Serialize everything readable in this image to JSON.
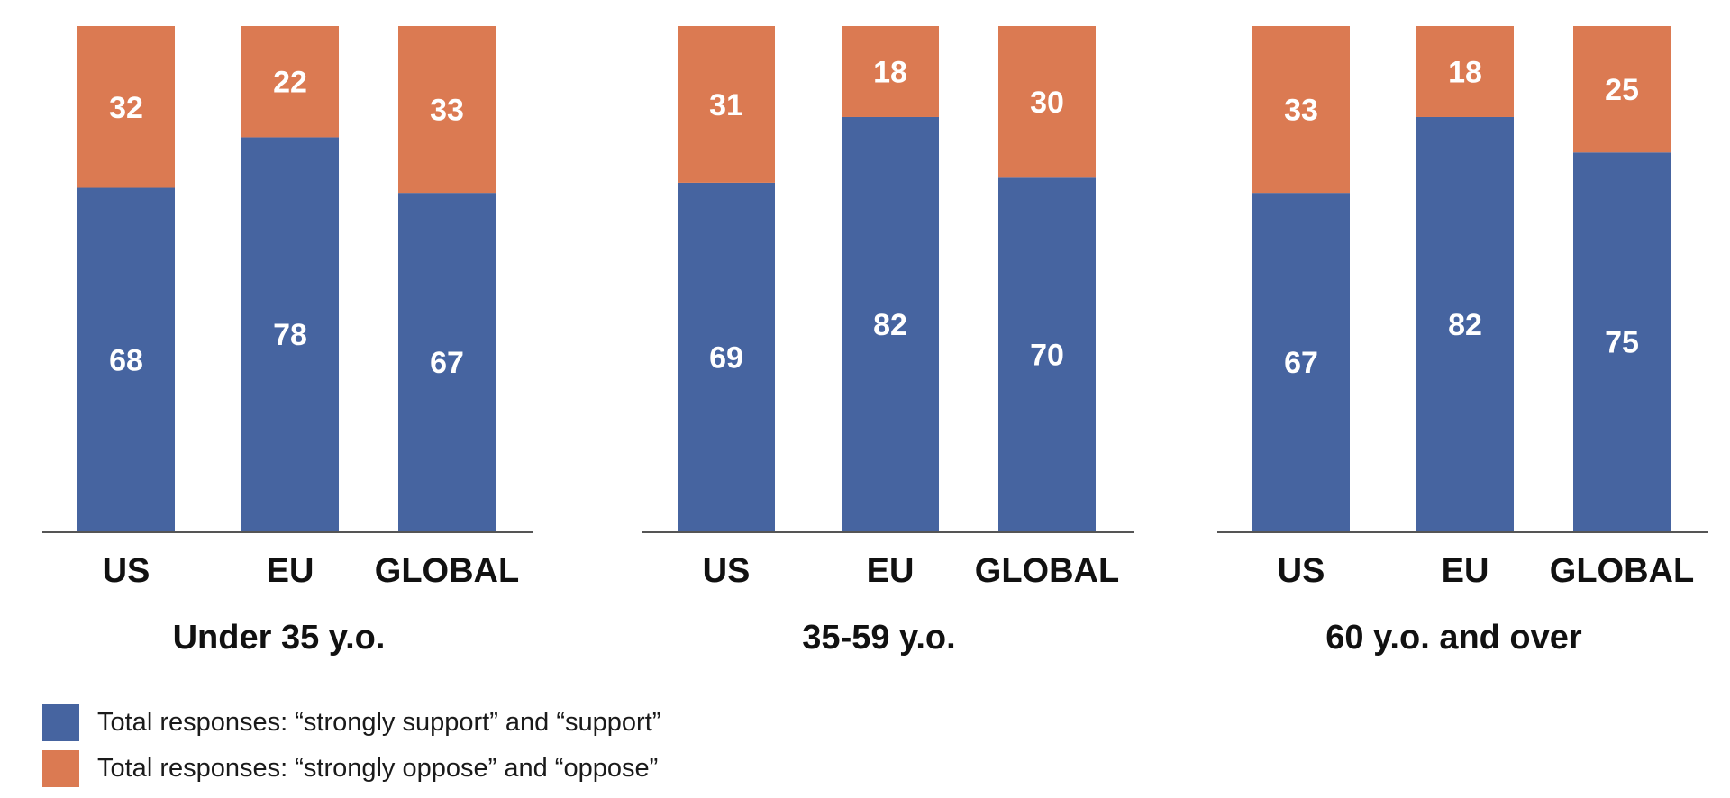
{
  "colors": {
    "support": "#4664a0",
    "oppose": "#db7a52",
    "axis": "#555555",
    "text": "#111111",
    "bar_label": "#ffffff"
  },
  "chart_data": {
    "type": "bar",
    "stacked": true,
    "ylim": [
      0,
      100
    ],
    "grid": false,
    "legend_position": "bottom-left",
    "series_names": [
      "Total responses: “strongly support” and “support”",
      "Total responses: “strongly oppose” and “oppose”"
    ],
    "groups": [
      {
        "title": "Under 35 y.o.",
        "categories": [
          "US",
          "EU",
          "GLOBAL"
        ],
        "series": [
          {
            "name": "Total responses: “strongly support” and “support”",
            "values": [
              68,
              78,
              67
            ]
          },
          {
            "name": "Total responses: “strongly oppose” and “oppose”",
            "values": [
              32,
              22,
              33
            ]
          }
        ]
      },
      {
        "title": "35-59 y.o.",
        "categories": [
          "US",
          "EU",
          "GLOBAL"
        ],
        "series": [
          {
            "name": "Total responses: “strongly support” and “support”",
            "values": [
              69,
              82,
              70
            ]
          },
          {
            "name": "Total responses: “strongly oppose” and “oppose”",
            "values": [
              31,
              18,
              30
            ]
          }
        ]
      },
      {
        "title": "60 y.o. and over",
        "categories": [
          "US",
          "EU",
          "GLOBAL"
        ],
        "series": [
          {
            "name": "Total responses: “strongly support” and “support”",
            "values": [
              67,
              82,
              75
            ]
          },
          {
            "name": "Total responses: “strongly oppose” and “oppose”",
            "values": [
              33,
              18,
              25
            ]
          }
        ]
      }
    ]
  }
}
